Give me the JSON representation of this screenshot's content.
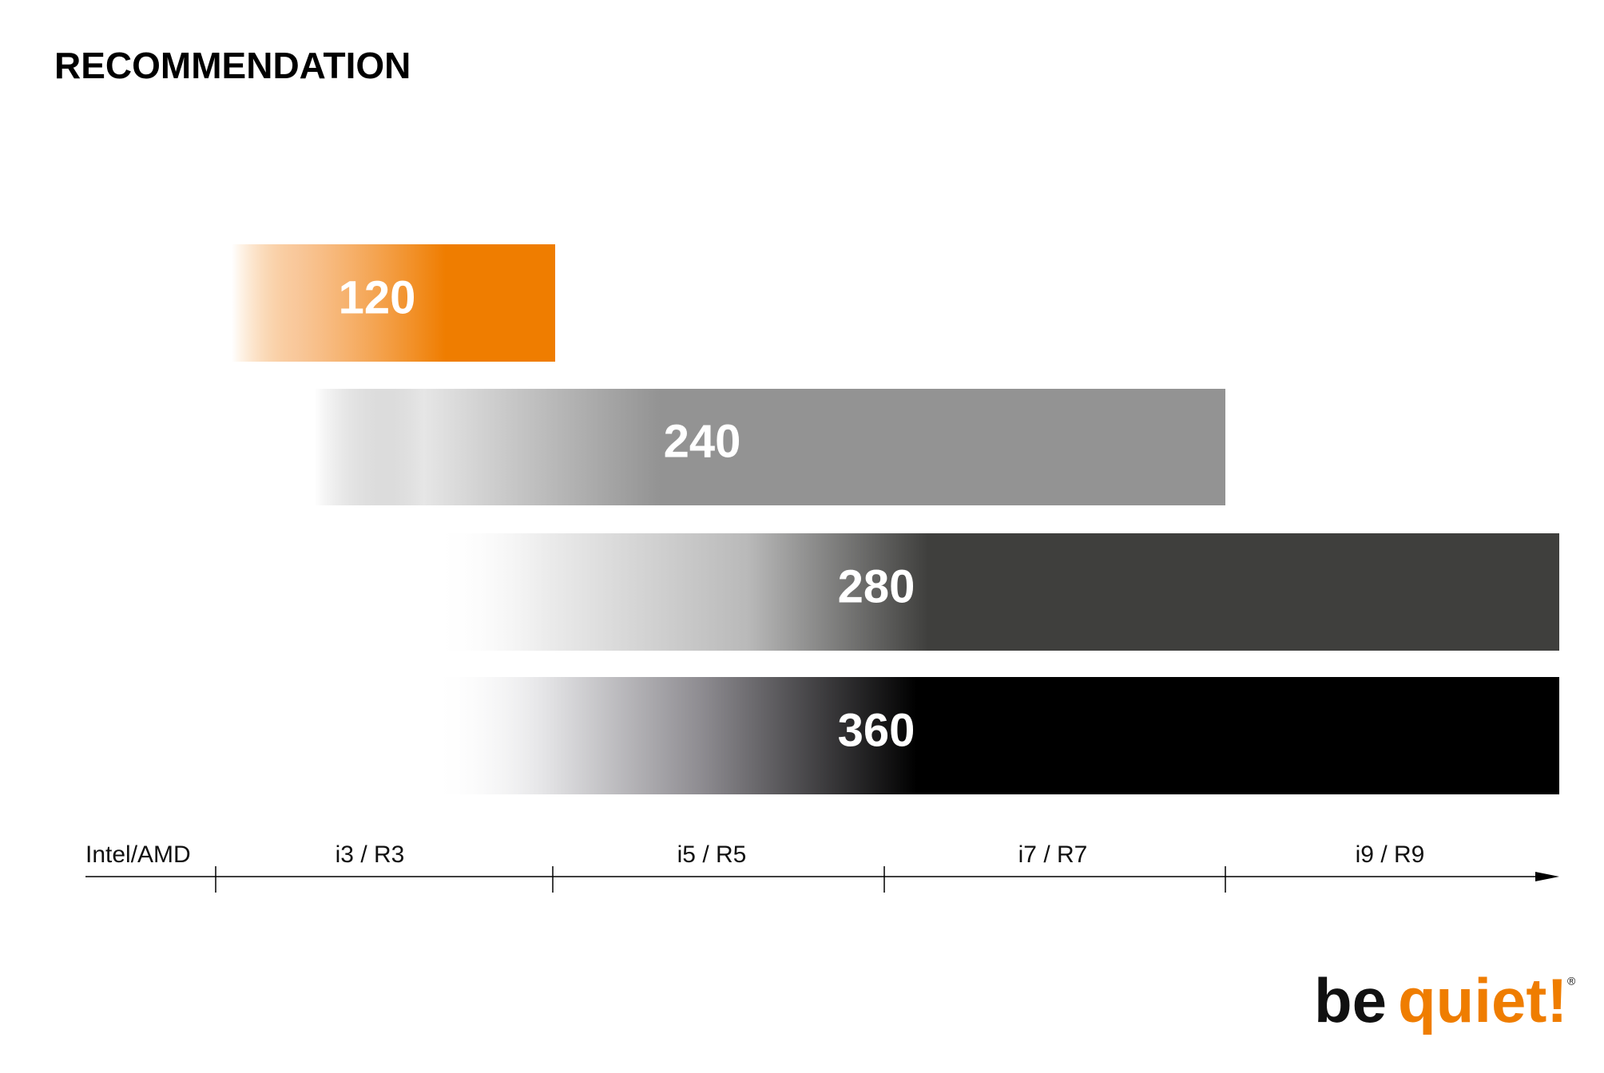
{
  "title": "RECOMMENDATION",
  "bars": [
    {
      "label": "120"
    },
    {
      "label": "240"
    },
    {
      "label": "280"
    },
    {
      "label": "360"
    }
  ],
  "axis": {
    "label": "Intel/AMD",
    "segments": [
      "i3 / R3",
      "i5 / R5",
      "i7 / R7",
      "i9 / R9"
    ]
  },
  "logo": {
    "first": "be",
    "second": "quiet!",
    "mark": "®"
  }
}
